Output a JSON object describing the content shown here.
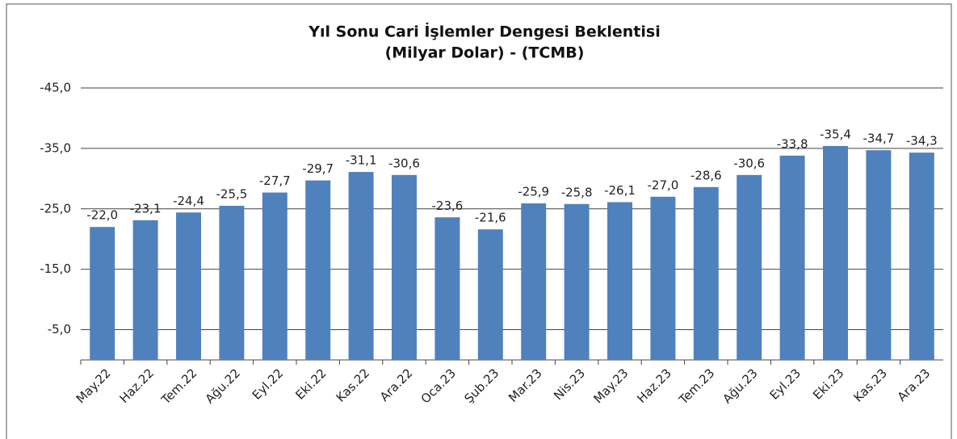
{
  "chart_data": {
    "type": "bar",
    "title": "Yıl Sonu Cari İşlemler Dengesi Beklentisi",
    "subtitle": "(Milyar Dolar) - (TCMB)",
    "categories": [
      "May.22",
      "Haz.22",
      "Tem.22",
      "Ağu.22",
      "Eyl.22",
      "Eki.22",
      "Kas.22",
      "Ara.22",
      "Oca.23",
      "Şub.23",
      "Mar.23",
      "Nis.23",
      "May.23",
      "Haz.23",
      "Tem.23",
      "Ağu.23",
      "Eyl.23",
      "Eki.23",
      "Kas.23",
      "Ara.23"
    ],
    "values": [
      -22.0,
      -23.1,
      -24.4,
      -25.5,
      -27.7,
      -29.7,
      -31.1,
      -30.6,
      -23.6,
      -21.6,
      -25.9,
      -25.8,
      -26.1,
      -27.0,
      -28.6,
      -30.6,
      -33.8,
      -35.4,
      -34.7,
      -34.3
    ],
    "value_labels": [
      "-22,0",
      "-23,1",
      "-24,4",
      "-25,5",
      "-27,7",
      "-29,7",
      "-31,1",
      "-30,6",
      "-23,6",
      "-21,6",
      "-25,9",
      "-25,8",
      "-26,1",
      "-27,0",
      "-28,6",
      "-30,6",
      "-33,8",
      "-35,4",
      "-34,7",
      "-34,3"
    ],
    "color": "#4f81bd",
    "ylim": [
      0,
      -45
    ],
    "yticks": [
      {
        "value": -5,
        "label": "-5,0"
      },
      {
        "value": -15,
        "label": "-15,0"
      },
      {
        "value": -25,
        "label": "-25,0"
      },
      {
        "value": -35,
        "label": "-35,0"
      },
      {
        "value": -45,
        "label": "-45,0"
      }
    ],
    "grid": true
  }
}
